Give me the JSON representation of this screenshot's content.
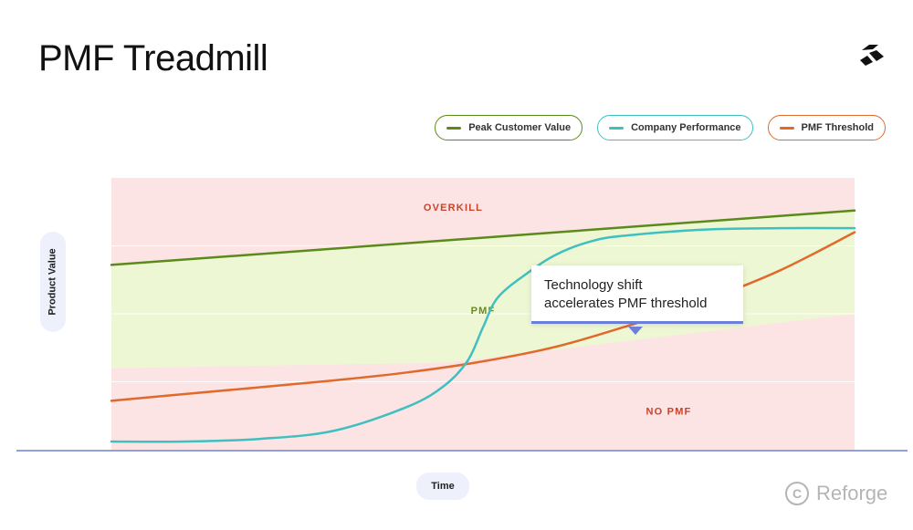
{
  "slide": {
    "title": "PMF Treadmill"
  },
  "watermark": {
    "copyright_symbol": "C",
    "brand": "Reforge"
  },
  "callout": {
    "line1": "Technology shift",
    "line2": "accelerates PMF threshold"
  },
  "colors": {
    "peak": "#5a8a1a",
    "company": "#3fbfbf",
    "threshold": "#e0692c",
    "zone_red": "#fce4e4",
    "zone_green": "#eef7d4",
    "baseline": "#6b7fd9"
  },
  "chart_data": {
    "type": "line",
    "title": "PMF Treadmill",
    "xlabel": "Time",
    "ylabel": "Product Value",
    "xlim": [
      0,
      100
    ],
    "ylim": [
      0,
      100
    ],
    "grid": true,
    "legend_position": "top-right",
    "series": [
      {
        "name": "Peak Customer Value",
        "color": "#5a8a1a",
        "x": [
          0,
          100
        ],
        "y": [
          68,
          88
        ]
      },
      {
        "name": "Company Performance",
        "color": "#3fbfbf",
        "x": [
          0,
          10,
          20,
          30,
          40,
          45,
          48,
          50,
          52,
          56,
          60,
          65,
          70,
          80,
          90,
          100
        ],
        "y": [
          3,
          3,
          4,
          7,
          16,
          24,
          33,
          45,
          56,
          65,
          72,
          77,
          79,
          81,
          81.5,
          81.5
        ]
      },
      {
        "name": "PMF Threshold",
        "color": "#e0692c",
        "x": [
          0,
          10,
          20,
          30,
          40,
          50,
          60,
          70,
          80,
          90,
          100
        ],
        "y": [
          18,
          20.5,
          23,
          25.5,
          28.5,
          32.5,
          38,
          46,
          55,
          66,
          80
        ]
      }
    ],
    "regions": [
      {
        "label": "OVERKILL",
        "color": "#c9432c"
      },
      {
        "label": "PMF",
        "color": "#6b8a1a"
      },
      {
        "label": "NO PMF",
        "color": "#c9432c"
      }
    ],
    "pmf_band_floor": {
      "x": [
        0,
        45,
        100
      ],
      "y": [
        30,
        32,
        50
      ]
    }
  }
}
